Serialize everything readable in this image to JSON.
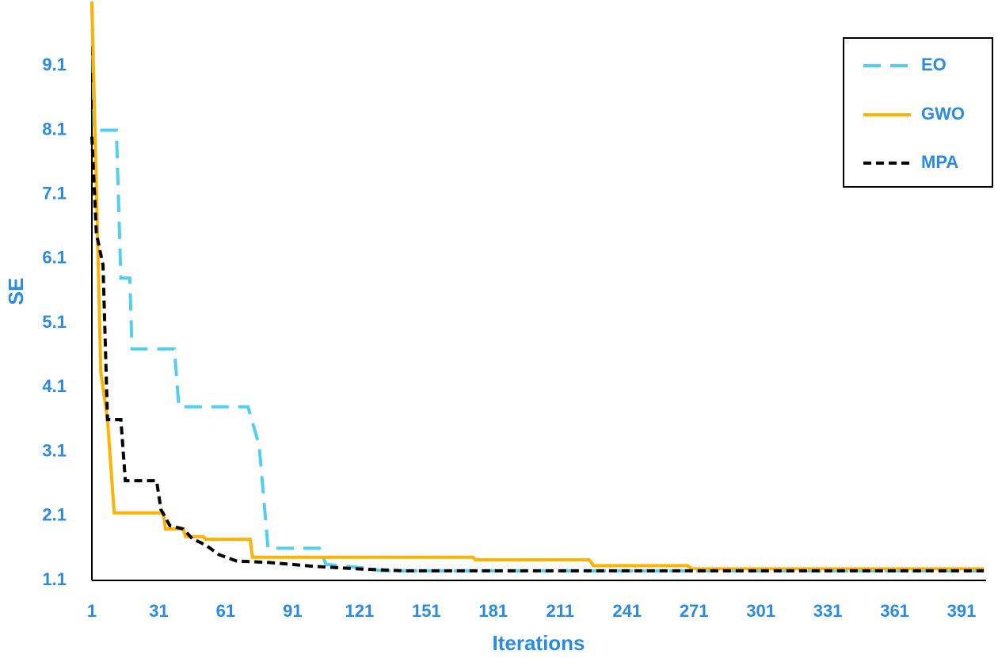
{
  "chart_data": {
    "type": "line",
    "xlabel": "Iterations",
    "ylabel": "SE",
    "xlim": [
      1,
      402
    ],
    "ylim": [
      1.1,
      10.1
    ],
    "xticks": [
      1,
      31,
      61,
      91,
      121,
      151,
      181,
      211,
      241,
      271,
      301,
      331,
      361,
      391
    ],
    "yticks": [
      1.1,
      2.1,
      3.1,
      4.1,
      5.1,
      6.1,
      7.1,
      8.1,
      9.1
    ],
    "grid": false,
    "legend": "upper right",
    "series": [
      {
        "name": "EO",
        "color": "#52cff0",
        "dash": "22 12",
        "x": [
          1,
          2,
          12,
          14,
          18,
          19,
          38,
          40,
          71,
          76,
          80,
          103,
          106,
          121,
          131,
          401
        ],
        "values": [
          10.1,
          8.1,
          8.1,
          5.8,
          5.8,
          4.7,
          4.7,
          3.8,
          3.8,
          3.2,
          1.6,
          1.6,
          1.35,
          1.3,
          1.25,
          1.25
        ]
      },
      {
        "name": "GWO",
        "color": "#ffb300",
        "dash": "none",
        "x": [
          1,
          5,
          8,
          11,
          33,
          34,
          42,
          43,
          51,
          52,
          72,
          73,
          172,
          173,
          224,
          226,
          268,
          270,
          401
        ],
        "values": [
          10.1,
          4.34,
          3.6,
          2.15,
          2.15,
          1.9,
          1.9,
          1.78,
          1.78,
          1.74,
          1.74,
          1.46,
          1.46,
          1.42,
          1.42,
          1.33,
          1.33,
          1.28,
          1.28
        ]
      },
      {
        "name": "MPA",
        "color": "#000000",
        "dash": "10 6",
        "x": [
          1,
          3,
          6,
          8,
          14,
          16,
          30,
          32,
          36,
          42,
          46,
          52,
          58,
          66,
          80,
          100,
          120,
          140,
          401
        ],
        "values": [
          8.0,
          6.5,
          6.0,
          3.6,
          3.6,
          2.65,
          2.65,
          2.2,
          1.95,
          1.9,
          1.75,
          1.65,
          1.5,
          1.4,
          1.38,
          1.32,
          1.28,
          1.25,
          1.25
        ]
      }
    ]
  }
}
